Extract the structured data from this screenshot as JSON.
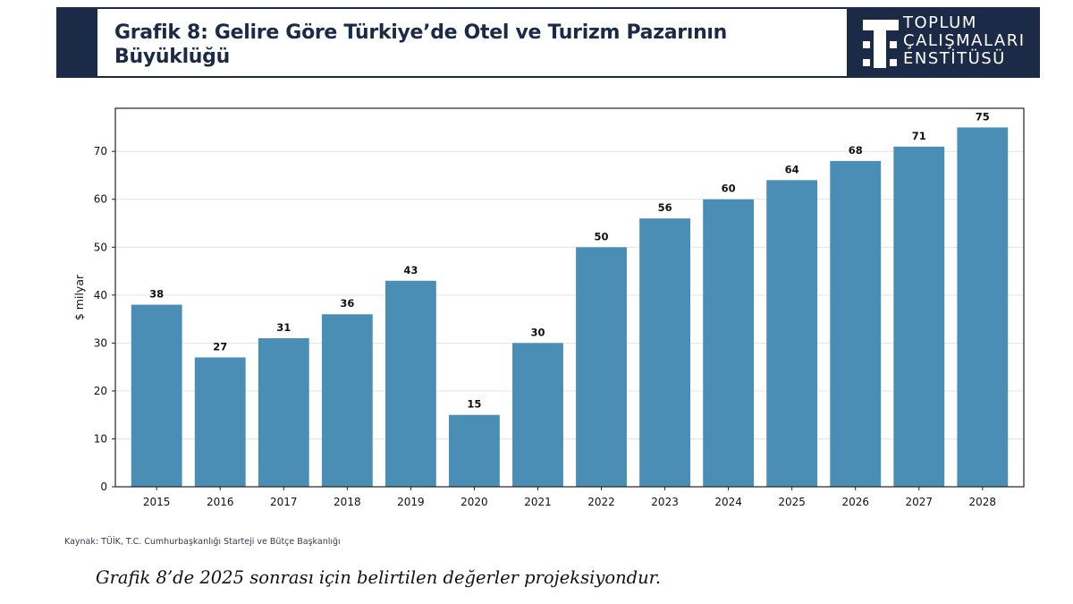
{
  "header": {
    "title": "Grafik 8: Gelire Göre Türkiye’de Otel ve Turizm Pazarının Büyüklüğü",
    "logo_lines": [
      "TOPLUM",
      "ÇALIŞMALARI",
      "ENSTİTÜSÜ"
    ],
    "bar_color": "#1b2a47"
  },
  "chart_data": {
    "type": "bar",
    "categories": [
      "2015",
      "2016",
      "2017",
      "2018",
      "2019",
      "2020",
      "2021",
      "2022",
      "2023",
      "2024",
      "2025",
      "2026",
      "2027",
      "2028"
    ],
    "values": [
      38,
      27,
      31,
      36,
      43,
      15,
      30,
      50,
      56,
      60,
      64,
      68,
      71,
      75
    ],
    "data_labels": [
      "38",
      "27",
      "31",
      "36",
      "43",
      "15",
      "30",
      "50",
      "56",
      "60",
      "64",
      "68",
      "71",
      "75"
    ],
    "ylabel": "$ milyar",
    "xlabel": "",
    "ylim": [
      0,
      79
    ],
    "yticks": [
      0,
      10,
      20,
      30,
      40,
      50,
      60,
      70
    ],
    "ytick_labels": [
      "0",
      "10",
      "20",
      "30",
      "40",
      "50",
      "60",
      "70"
    ],
    "grid": "horizontal",
    "bar_color": "#4a8db5"
  },
  "footer": {
    "source": "Kaynak: TÜİK, T.C. Cumhurbaşkanlığı Starteji ve Bütçe Başkanlığı",
    "note": "Grafik 8’de 2025 sonrası için belirtilen değerler projeksiyondur."
  }
}
